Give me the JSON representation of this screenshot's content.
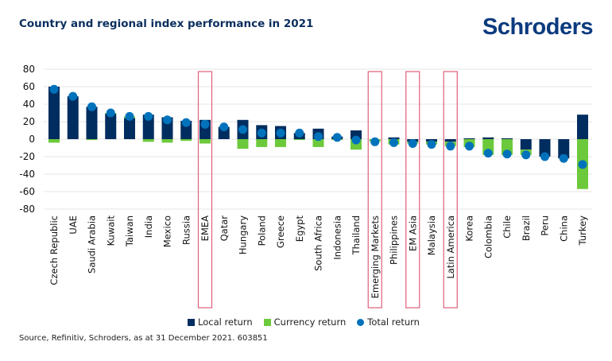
{
  "header": {
    "title": "Country and regional index performance in 2021",
    "logo": "Schroders"
  },
  "footer": {
    "source": "Source, Refinitiv, Schroders, as at 31 December 2021. 603851"
  },
  "colors": {
    "local": "#002d5f",
    "currency": "#6cc93b",
    "total": "#0072bc",
    "highlight": "#e0607a",
    "grid": "#e6e6e6",
    "title": "#0b2e5e"
  },
  "chart_data": {
    "type": "bar",
    "stacked": true,
    "title": "Country and regional index performance in 2021",
    "xlabel": "",
    "ylabel": "",
    "ylim": [
      -80,
      80
    ],
    "yticks": [
      80,
      60,
      40,
      20,
      0,
      -20,
      -40,
      -60,
      -80
    ],
    "grid": true,
    "legend_position": "bottom",
    "categories": [
      "Czech Republic",
      "UAE",
      "Saudi Arabia",
      "Kuwait",
      "Taiwan",
      "India",
      "Mexico",
      "Russia",
      "EMEA",
      "Qatar",
      "Hungary",
      "Poland",
      "Greece",
      "Egypt",
      "South Africa",
      "Indonesia",
      "Thailand",
      "Emerging Markets",
      "Philippines",
      "EM Asia",
      "Malaysia",
      "Latin America",
      "Korea",
      "Colombia",
      "Chile",
      "Brazil",
      "Peru",
      "China",
      "Turkey"
    ],
    "highlighted": [
      "EMEA",
      "Emerging Markets",
      "EM Asia",
      "Latin America"
    ],
    "series": [
      {
        "name": "Local return",
        "kind": "bar",
        "values": [
          60,
          49,
          37,
          29,
          24,
          28,
          25,
          21,
          22,
          14,
          22,
          16,
          15,
          7,
          12,
          3,
          10,
          0,
          2,
          -3,
          -3,
          -3,
          1,
          2,
          1,
          -12,
          -20,
          -22,
          28
        ]
      },
      {
        "name": "Currency return",
        "kind": "bar",
        "values": [
          -4,
          0,
          -1,
          1,
          2,
          -3,
          -4,
          -2,
          -5,
          0,
          -11,
          -9,
          -9,
          -1,
          -9,
          -1,
          -12,
          -3,
          -6,
          -2,
          -3,
          -5,
          -9,
          -18,
          -18,
          -6,
          0,
          0,
          -57
        ]
      },
      {
        "name": "Total return",
        "kind": "dot",
        "values": [
          57,
          49,
          37,
          30,
          26,
          26,
          22,
          19,
          17,
          14,
          11,
          7,
          7,
          7,
          3,
          2,
          -1,
          -3,
          -4,
          -5,
          -6,
          -8,
          -8,
          -16,
          -17,
          -18,
          -20,
          -22,
          -29
        ]
      }
    ]
  }
}
